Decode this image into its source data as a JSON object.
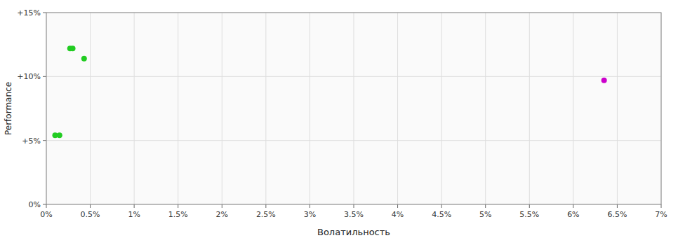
{
  "chart_data": {
    "type": "scatter",
    "x_label": "Волатильность",
    "y_label": "Performance",
    "xlim": [
      0,
      0.07
    ],
    "ylim": [
      0,
      0.15
    ],
    "xticks": [
      {
        "value": 0.0,
        "label": "0%"
      },
      {
        "value": 0.005,
        "label": "0.5%"
      },
      {
        "value": 0.01,
        "label": "1%"
      },
      {
        "value": 0.015,
        "label": "1.5%"
      },
      {
        "value": 0.02,
        "label": "2%"
      },
      {
        "value": 0.025,
        "label": "2.5%"
      },
      {
        "value": 0.03,
        "label": "3%"
      },
      {
        "value": 0.035,
        "label": "3.5%"
      },
      {
        "value": 0.04,
        "label": "4%"
      },
      {
        "value": 0.045,
        "label": "4.5%"
      },
      {
        "value": 0.05,
        "label": "5%"
      },
      {
        "value": 0.055,
        "label": "5.5%"
      },
      {
        "value": 0.06,
        "label": "6%"
      },
      {
        "value": 0.065,
        "label": "6.5%"
      },
      {
        "value": 0.07,
        "label": "7%"
      }
    ],
    "yticks": [
      {
        "value": 0.0,
        "label": "0%"
      },
      {
        "value": 0.05,
        "label": "+5%"
      },
      {
        "value": 0.1,
        "label": "+10%"
      },
      {
        "value": 0.15,
        "label": "+15%"
      }
    ],
    "grid": true,
    "series": [
      {
        "color": "#22cc22",
        "x": [
          0.0027,
          0.003,
          0.0043,
          0.001,
          0.0015
        ],
        "values": [
          0.122,
          0.122,
          0.114,
          0.054,
          0.054
        ]
      },
      {
        "color": "#cc00cc",
        "x": [
          0.0635
        ],
        "values": [
          0.097
        ]
      }
    ]
  }
}
